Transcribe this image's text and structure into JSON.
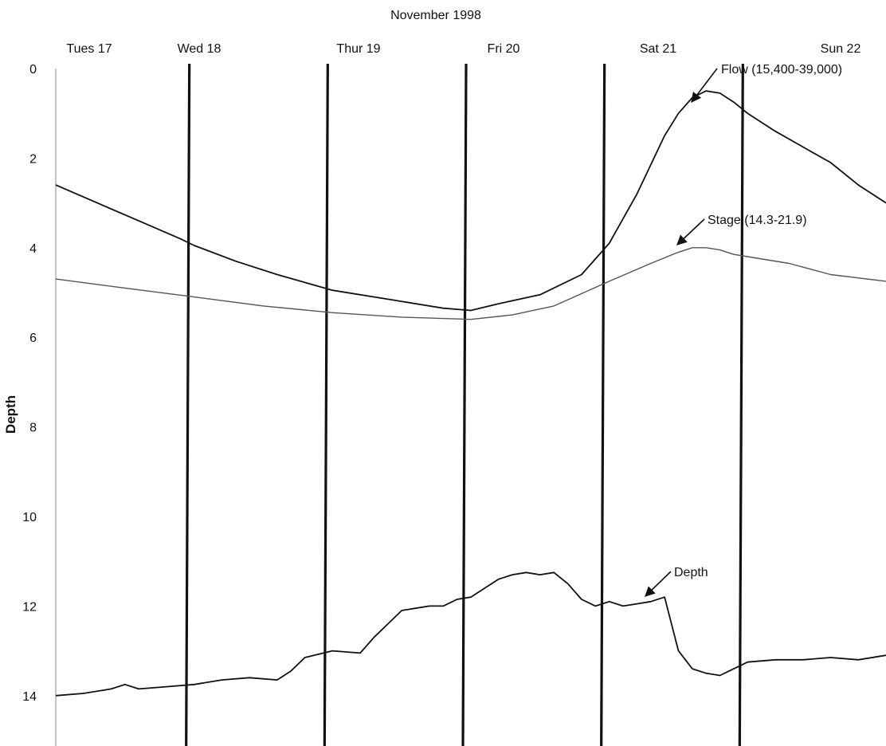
{
  "chart_data": {
    "type": "line",
    "title": "November 1998",
    "ylabel": "Depth",
    "ylim": [
      0,
      15
    ],
    "y_inverted": true,
    "yticks": [
      0,
      2,
      4,
      6,
      8,
      10,
      12,
      14
    ],
    "xlim": [
      0,
      6
    ],
    "days": [
      "Tues 17",
      "Wed 18",
      "Thur 19",
      "Fri 20",
      "Sat 21",
      "Sun 22"
    ],
    "day_boundaries": [
      1,
      2,
      3,
      4,
      5
    ],
    "grid": false,
    "series": [
      {
        "name": "Flow (15,400-39,000)",
        "color": "#111111",
        "x": [
          0.0,
          0.3,
          0.6,
          0.9,
          1.0,
          1.3,
          1.6,
          2.0,
          2.4,
          2.8,
          3.0,
          3.2,
          3.5,
          3.8,
          4.0,
          4.2,
          4.4,
          4.5,
          4.6,
          4.7,
          4.8,
          4.9,
          5.0,
          5.2,
          5.4,
          5.6,
          5.8,
          6.0
        ],
        "y": [
          2.6,
          3.0,
          3.4,
          3.8,
          3.95,
          4.3,
          4.6,
          4.95,
          5.15,
          5.35,
          5.4,
          5.25,
          5.05,
          4.6,
          3.9,
          2.8,
          1.5,
          1.0,
          0.65,
          0.5,
          0.55,
          0.75,
          1.0,
          1.4,
          1.75,
          2.1,
          2.6,
          3.0
        ]
      },
      {
        "name": "Stage (14.3-21.9)",
        "color": "#555555",
        "x": [
          0.0,
          0.5,
          1.0,
          1.5,
          2.0,
          2.5,
          3.0,
          3.3,
          3.6,
          4.0,
          4.3,
          4.5,
          4.6,
          4.7,
          4.8,
          4.9,
          5.0,
          5.3,
          5.6,
          6.0
        ],
        "y": [
          4.7,
          4.9,
          5.1,
          5.3,
          5.45,
          5.55,
          5.6,
          5.5,
          5.3,
          4.75,
          4.35,
          4.1,
          4.0,
          4.0,
          4.05,
          4.15,
          4.2,
          4.35,
          4.6,
          4.75
        ]
      },
      {
        "name": "Depth",
        "color": "#111111",
        "x": [
          0.0,
          0.2,
          0.4,
          0.5,
          0.6,
          0.8,
          1.0,
          1.2,
          1.4,
          1.6,
          1.7,
          1.8,
          2.0,
          2.2,
          2.3,
          2.4,
          2.5,
          2.6,
          2.7,
          2.8,
          2.9,
          3.0,
          3.1,
          3.2,
          3.3,
          3.4,
          3.5,
          3.6,
          3.7,
          3.8,
          3.9,
          4.0,
          4.1,
          4.2,
          4.3,
          4.4,
          4.5,
          4.6,
          4.7,
          4.8,
          4.9,
          5.0,
          5.2,
          5.4,
          5.6,
          5.8,
          6.0
        ],
        "y": [
          14.0,
          13.95,
          13.85,
          13.75,
          13.85,
          13.8,
          13.75,
          13.65,
          13.6,
          13.65,
          13.45,
          13.15,
          13.0,
          13.05,
          12.7,
          12.4,
          12.1,
          12.05,
          12.0,
          12.0,
          11.85,
          11.8,
          11.6,
          11.4,
          11.3,
          11.25,
          11.3,
          11.25,
          11.5,
          11.85,
          12.0,
          11.9,
          12.0,
          11.95,
          11.9,
          11.8,
          13.0,
          13.4,
          13.5,
          13.55,
          13.4,
          13.25,
          13.2,
          13.2,
          13.15,
          13.2,
          13.1
        ]
      }
    ],
    "annotations": [
      {
        "text": "Flow (15,400-39,000)",
        "series": 0
      },
      {
        "text": "Stage (14.3-21.9)",
        "series": 1
      },
      {
        "text": "Depth",
        "series": 2
      }
    ]
  }
}
